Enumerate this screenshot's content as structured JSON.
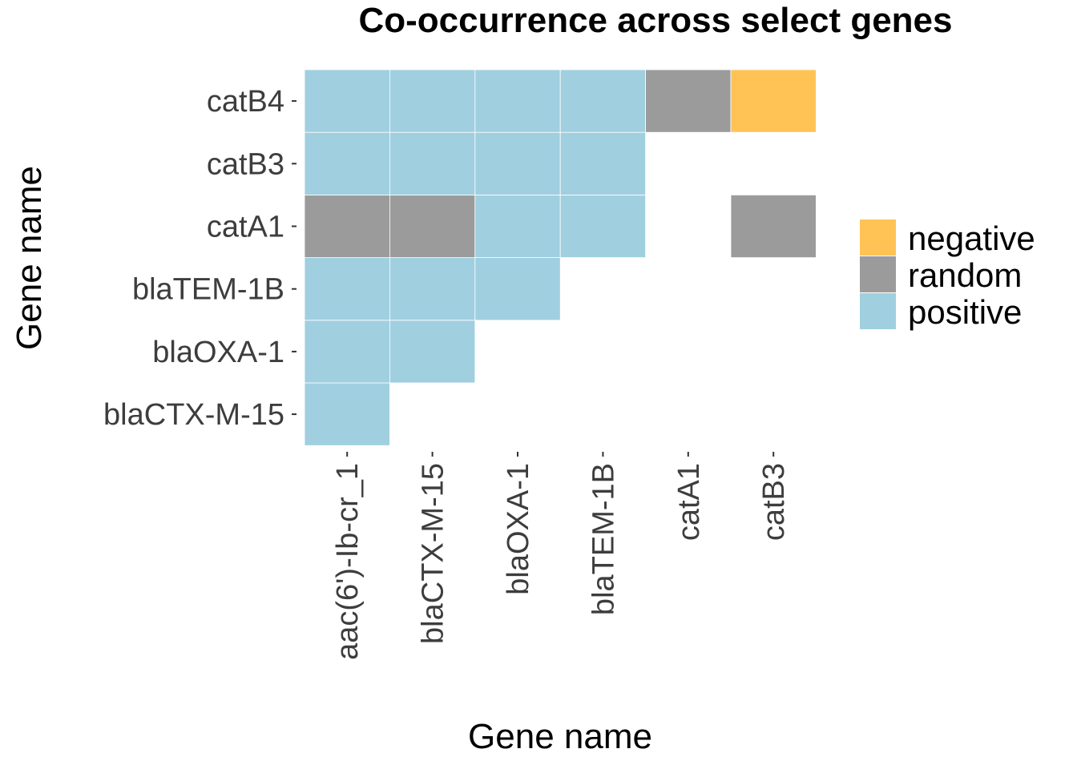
{
  "chart_data": {
    "type": "heatmap",
    "title": "Co-occurrence across select genes",
    "xlabel": "Gene name",
    "ylabel": "Gene name",
    "x_categories": [
      "aac(6')-Ib-cr_1",
      "blaCTX-M-15",
      "blaOXA-1",
      "blaTEM-1B",
      "catA1",
      "catB3"
    ],
    "y_categories": [
      "blaCTX-M-15",
      "blaOXA-1",
      "blaTEM-1B",
      "catA1",
      "catB3",
      "catB4"
    ],
    "legend": [
      {
        "label": "negative",
        "color": "#FFC355"
      },
      {
        "label": "random",
        "color": "#9B9B9B"
      },
      {
        "label": "positive",
        "color": "#A0CFE0"
      }
    ],
    "legend_position": "right",
    "grid": false,
    "cells": [
      {
        "x": "aac(6')-Ib-cr_1",
        "y": "blaCTX-M-15",
        "value": "positive"
      },
      {
        "x": "aac(6')-Ib-cr_1",
        "y": "blaOXA-1",
        "value": "positive"
      },
      {
        "x": "blaCTX-M-15",
        "y": "blaOXA-1",
        "value": "positive"
      },
      {
        "x": "aac(6')-Ib-cr_1",
        "y": "blaTEM-1B",
        "value": "positive"
      },
      {
        "x": "blaCTX-M-15",
        "y": "blaTEM-1B",
        "value": "positive"
      },
      {
        "x": "blaOXA-1",
        "y": "blaTEM-1B",
        "value": "positive"
      },
      {
        "x": "aac(6')-Ib-cr_1",
        "y": "catA1",
        "value": "random"
      },
      {
        "x": "blaCTX-M-15",
        "y": "catA1",
        "value": "random"
      },
      {
        "x": "blaOXA-1",
        "y": "catA1",
        "value": "positive"
      },
      {
        "x": "blaTEM-1B",
        "y": "catA1",
        "value": "positive"
      },
      {
        "x": "catB3",
        "y": "catA1",
        "value": "random"
      },
      {
        "x": "aac(6')-Ib-cr_1",
        "y": "catB3",
        "value": "positive"
      },
      {
        "x": "blaCTX-M-15",
        "y": "catB3",
        "value": "positive"
      },
      {
        "x": "blaOXA-1",
        "y": "catB3",
        "value": "positive"
      },
      {
        "x": "blaTEM-1B",
        "y": "catB3",
        "value": "positive"
      },
      {
        "x": "aac(6')-Ib-cr_1",
        "y": "catB4",
        "value": "positive"
      },
      {
        "x": "blaCTX-M-15",
        "y": "catB4",
        "value": "positive"
      },
      {
        "x": "blaOXA-1",
        "y": "catB4",
        "value": "positive"
      },
      {
        "x": "blaTEM-1B",
        "y": "catB4",
        "value": "positive"
      },
      {
        "x": "catA1",
        "y": "catB4",
        "value": "random"
      },
      {
        "x": "catB3",
        "y": "catB4",
        "value": "negative"
      }
    ]
  }
}
